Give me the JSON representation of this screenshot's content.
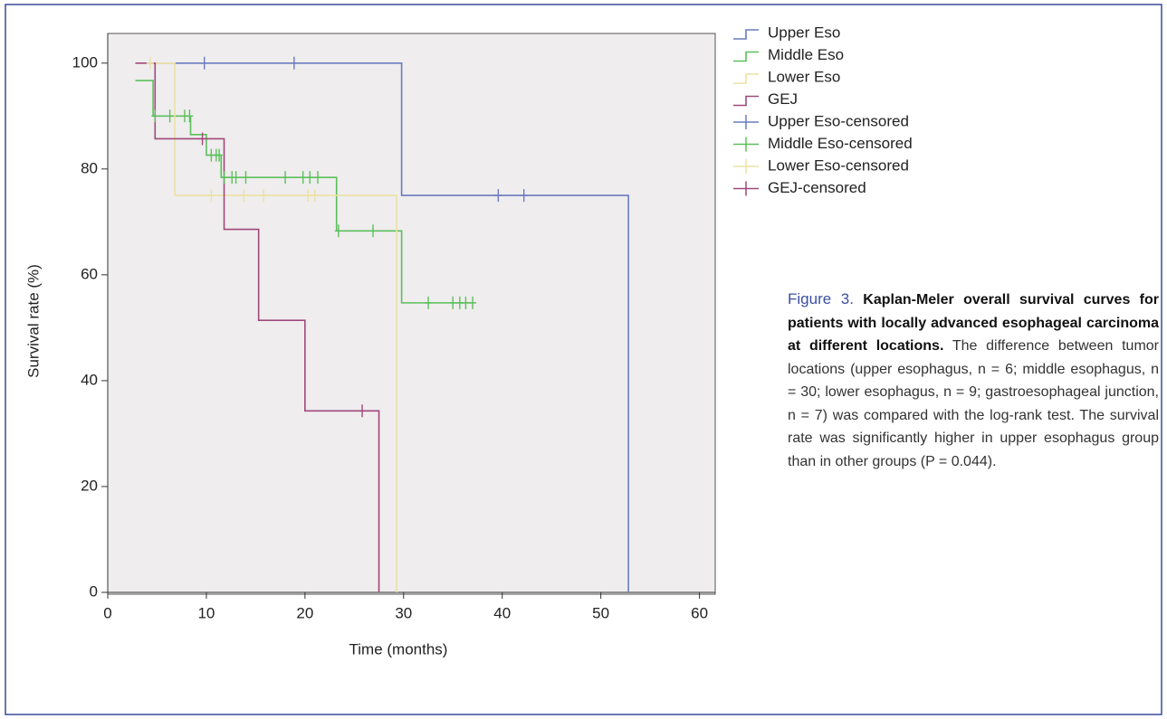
{
  "chart_data": {
    "type": "kaplan-meier",
    "xlabel": "Time (months)",
    "ylabel": "Survival rate (%)",
    "xlim": [
      0,
      61.6
    ],
    "ylim": [
      0,
      105.6
    ],
    "xticks": [
      0,
      10,
      20,
      30,
      40,
      50,
      60
    ],
    "yticks": [
      0,
      20,
      40,
      60,
      80,
      100
    ],
    "series": [
      {
        "name": "Upper Eso",
        "color": "#6a7bc0",
        "censored": false,
        "x": [
          4.8,
          29.8,
          29.8,
          52.8,
          52.8
        ],
        "values": [
          100,
          100,
          75,
          75,
          0
        ]
      },
      {
        "name": "Middle Eso",
        "color": "#5cc05c",
        "censored": false,
        "x": [
          2.8,
          4.6,
          4.6,
          8.4,
          8.4,
          10,
          10,
          11.5,
          11.5,
          23.2,
          23.2,
          29.8,
          29.8,
          37
        ],
        "values": [
          96.7,
          96.7,
          90,
          90,
          86.5,
          86.5,
          82.6,
          82.6,
          78.4,
          78.4,
          68.3,
          68.3,
          54.7,
          54.7
        ]
      },
      {
        "name": "Lower Eso",
        "color": "#ece2a4",
        "censored": false,
        "x": [
          3.8,
          6.8,
          6.8,
          29.3,
          29.3
        ],
        "values": [
          100,
          100,
          75,
          75,
          0
        ]
      },
      {
        "name": "GEJ",
        "color": "#a0487a",
        "censored": false,
        "x": [
          2.8,
          4.8,
          4.8,
          11.8,
          11.8,
          15.3,
          15.3,
          20,
          20,
          27.5,
          27.5
        ],
        "values": [
          100,
          100,
          85.7,
          85.7,
          68.6,
          68.6,
          51.4,
          51.4,
          34.3,
          34.3,
          0
        ]
      },
      {
        "name": "Upper Eso-censored",
        "color": "#6a7bc0",
        "censored": true,
        "x": [
          9.8,
          18.9,
          39.6,
          42.2
        ],
        "values": [
          100,
          100,
          75,
          75
        ]
      },
      {
        "name": "Middle Eso-censored",
        "color": "#5cc05c",
        "censored": true,
        "x": [
          4.8,
          6.3,
          7.8,
          8.3,
          10.5,
          11,
          11.3,
          11.8,
          12.6,
          13,
          14,
          18,
          19.8,
          20.5,
          21.3,
          23.4,
          26.9,
          32.5,
          35,
          35.7,
          36.3,
          37
        ],
        "values": [
          90,
          90,
          90,
          90,
          82.6,
          82.6,
          82.6,
          78.4,
          78.4,
          78.4,
          78.4,
          78.4,
          78.4,
          78.4,
          78.4,
          68.3,
          68.3,
          54.7,
          54.7,
          54.7,
          54.7,
          54.7
        ]
      },
      {
        "name": "Lower Eso-censored",
        "color": "#ece2a4",
        "censored": true,
        "x": [
          4.3,
          10.5,
          13.8,
          15.8,
          20.3,
          21
        ],
        "values": [
          100,
          75,
          75,
          75,
          75,
          75
        ]
      },
      {
        "name": "GEJ-censored",
        "color": "#a0487a",
        "censored": true,
        "x": [
          9.6,
          25.8
        ],
        "values": [
          85.7,
          34.3
        ]
      }
    ],
    "caption_label": "Figure 3.",
    "caption_title": "Kaplan-Meler overall survival curves for patients with locally advanced esophageal carcinoma at different locations.",
    "caption_text": "The difference between tumor locations (upper esophagus, n = 6; middle esophagus, n = 30; lower esophagus, n = 9; gastroesophageal junction, n = 7) was compared with the log-rank test. The survival rate was significantly higher in upper esophagus group than in other groups (P = 0.044)."
  }
}
